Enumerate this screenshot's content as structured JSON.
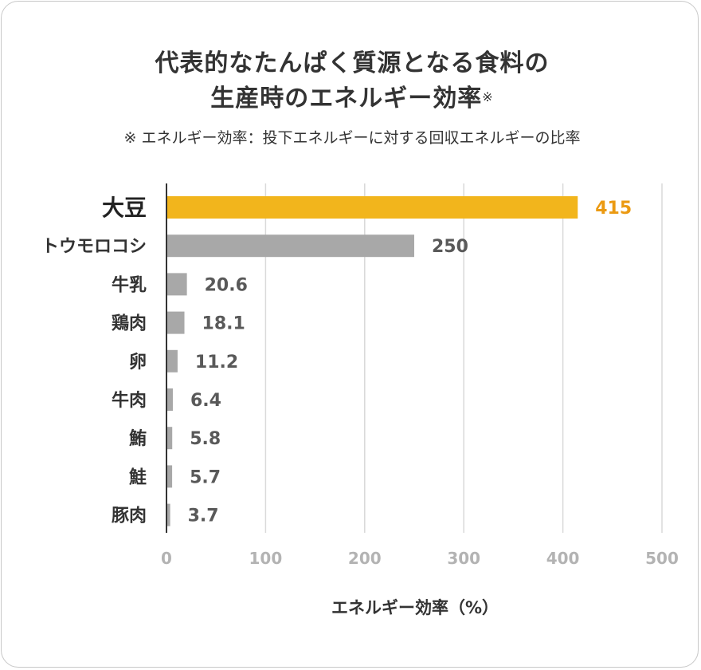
{
  "title_line1": "代表的なたんぱく質源となる食料の",
  "title_line2": "生産時のエネルギー効率",
  "title_mark": "※",
  "footnote": "※ エネルギー効率：投下エネルギーに対する回収エネルギーの比率",
  "colors": {
    "highlight": "#f2b51c",
    "highlight_text": "#eb9a12",
    "bar": "#a8a8a8",
    "text": "#333333",
    "value_text": "#595959",
    "tick_text": "#b3b3b3",
    "grid": "#d9d9d9"
  },
  "chart_data": {
    "type": "bar",
    "orientation": "horizontal",
    "categories": [
      "大豆",
      "トウモロコシ",
      "牛乳",
      "鶏肉",
      "卵",
      "牛肉",
      "鮪",
      "鮭",
      "豚肉"
    ],
    "values": [
      415,
      250,
      20.6,
      18.1,
      11.2,
      6.4,
      5.8,
      5.7,
      3.7
    ],
    "value_labels": [
      "415",
      "250",
      "20.6",
      "18.1",
      "11.2",
      "6.4",
      "5.8",
      "5.7",
      "3.7"
    ],
    "highlight_index": 0,
    "xlabel": "エネルギー効率（%）",
    "ylabel": "",
    "xlim": [
      0,
      500
    ],
    "xticks": [
      0,
      100,
      200,
      300,
      400,
      500
    ],
    "grid": "vertical"
  }
}
